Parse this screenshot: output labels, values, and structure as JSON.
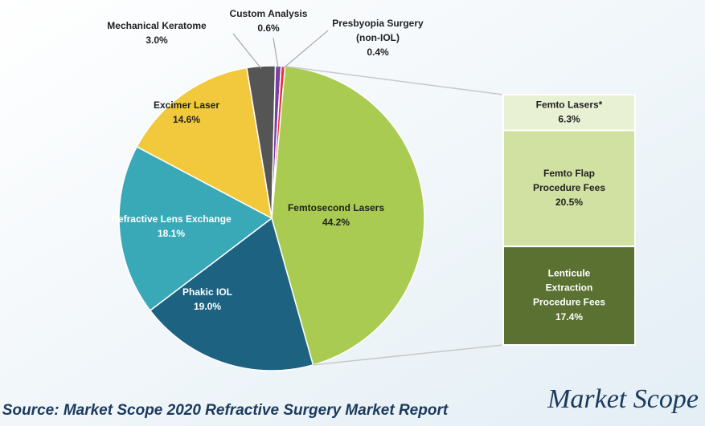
{
  "chart_data": [
    {
      "type": "pie",
      "categories": [
        "Femtosecond Lasers",
        "Phakic IOL",
        "Refractive Lens Exchange",
        "Excimer Laser",
        "Mechanical Keratome",
        "Custom Analysis",
        "Presbyopia Surgery\n(non-IOL)"
      ],
      "values": [
        44.2,
        19.0,
        18.1,
        14.6,
        3.0,
        0.6,
        0.4
      ],
      "value_labels": [
        "44.2%",
        "19.0%",
        "18.1%",
        "14.6%",
        "3.0%",
        "0.6%",
        "0.4%"
      ],
      "colors": [
        "#a9cb52",
        "#1e6282",
        "#3aa9b7",
        "#f2c93c",
        "#555555",
        "#7b3fa3",
        "#e23232"
      ]
    },
    {
      "type": "stacked-bar",
      "categories": [
        "Femto Lasers*",
        "Femto Flap\nProcedure Fees",
        "Lenticule\nExtraction\nProcedure Fees"
      ],
      "values": [
        6.3,
        20.5,
        17.4
      ],
      "value_labels": [
        "6.3%",
        "20.5%",
        "17.4%"
      ],
      "colors": [
        "#e9f1d4",
        "#d0e1a2",
        "#5a7131"
      ]
    }
  ],
  "source": "Source: Market Scope 2020 Refractive Surgery Market Report",
  "logo": "Market Scope"
}
